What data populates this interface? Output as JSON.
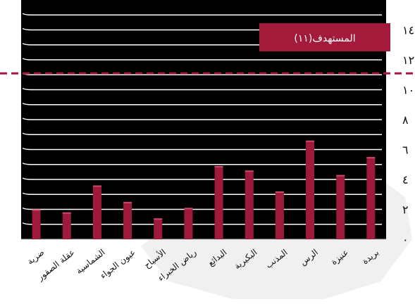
{
  "chart_data": {
    "type": "bar",
    "categories": [
      "بريدة",
      "عنيزة",
      "الرس",
      "المذنب",
      "البكيرية",
      "البدائع",
      "رياض الخبراء",
      "الأسياح",
      "عيون الجواء",
      "الشماسية",
      "عقلة الصقور",
      "ضرية"
    ],
    "values": [
      5.5,
      4.3,
      6.6,
      3.2,
      4.6,
      4.9,
      2.1,
      1.4,
      2.5,
      3.6,
      1.8,
      2.0
    ],
    "ylim": [
      0,
      16
    ],
    "yticks": [
      "٠",
      "٢",
      "٤",
      "٦",
      "٨",
      "١٠",
      "١٢",
      "١٤"
    ],
    "target": {
      "value": 11,
      "label": "المستهدف(١١)"
    },
    "colors": {
      "background": "#000000",
      "bar": "#9e1a3a",
      "target": "#a31a3a",
      "grid": "#ffffff"
    }
  }
}
